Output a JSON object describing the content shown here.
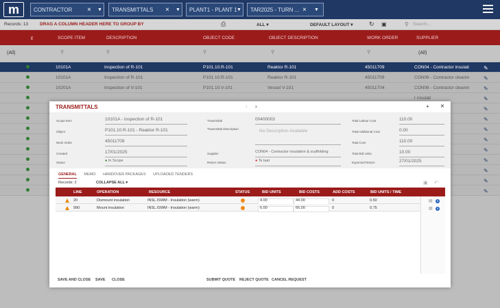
{
  "topbar": {
    "filters": [
      "CONTRACTOR",
      "TRANSMITTALS",
      "PLANT1 - PLANT 1",
      "TAR2025 - TURN ..."
    ]
  },
  "toolbar": {
    "records": "Records: 13",
    "group_hint": "DRAG A COLUMN HEADER HERE TO GROUP BY",
    "scope": "ALL",
    "layout": "DEFAULT LAYOUT",
    "search_placeholder": "Search..."
  },
  "grid": {
    "columns": [
      "SCOPE ITEM",
      "DESCRIPTION",
      "OBJECT CODE",
      "OBJECT DESCRIPTION",
      "WORK ORDER",
      "SUPPLIER"
    ],
    "filter_all": "(All)",
    "rows": [
      {
        "scope": "10101A",
        "desc": "Inspection of R-101",
        "code": "P101.10.R-101",
        "odesc": "Reaktor R-101",
        "wo": "45011709",
        "sup": "CON04 - Contractor insulati"
      },
      {
        "scope": "10101A",
        "desc": "Inspection of R-101",
        "code": "P101.10.R-101",
        "odesc": "Reaktor R-101",
        "wo": "45011709",
        "sup": "CON06 - Contractor cleanin"
      },
      {
        "scope": "10201A",
        "desc": "Inspection of V-101",
        "code": "P101.10.V-101",
        "odesc": "Vessel V-101",
        "wo": "45011704",
        "sup": "CON06 - Contractor cleanin"
      },
      {
        "scope": "",
        "desc": "",
        "code": "",
        "odesc": "",
        "wo": "",
        "sup": "r insulati"
      },
      {
        "scope": "",
        "desc": "",
        "code": "",
        "odesc": "",
        "wo": "",
        "sup": "r insulati"
      },
      {
        "scope": "",
        "desc": "",
        "code": "",
        "odesc": "",
        "wo": "",
        "sup": "r insulati"
      },
      {
        "scope": "",
        "desc": "",
        "code": "",
        "odesc": "",
        "wo": "",
        "sup": "r insulati"
      },
      {
        "scope": "",
        "desc": "",
        "code": "",
        "odesc": "",
        "wo": "",
        "sup": "r insulati"
      },
      {
        "scope": "",
        "desc": "",
        "code": "",
        "odesc": "",
        "wo": "",
        "sup": "r insulati"
      },
      {
        "scope": "",
        "desc": "",
        "code": "",
        "odesc": "",
        "wo": "",
        "sup": "r insulati"
      },
      {
        "scope": "",
        "desc": "",
        "code": "",
        "odesc": "",
        "wo": "",
        "sup": "r cleanin"
      },
      {
        "scope": "",
        "desc": "",
        "code": "",
        "odesc": "",
        "wo": "",
        "sup": "r cleanin"
      },
      {
        "scope": "",
        "desc": "",
        "code": "",
        "odesc": "",
        "wo": "",
        "sup": "r cleanin"
      }
    ]
  },
  "modal": {
    "title": "TRANSMITTALS",
    "fields": {
      "scope_item_label": "Scope Item",
      "scope_item": "10101A - Inspection of R-101",
      "object_label": "Object",
      "object": "P101.10.R-101 - Reaktor R-101",
      "work_order_label": "Work Order",
      "work_order": "45011709",
      "created_label": "Created",
      "created": "17/01/2025",
      "status_label": "Status",
      "status": "In Scope",
      "transmittal_label": "Transmittal",
      "transmittal": "00400003",
      "tdesc_label": "Transmittal Description",
      "tdesc": "No Description Available",
      "supplier_label": "Supplier",
      "supplier": "CON04 - Contractor insulation & scaffolding",
      "return_status_label": "Return Status",
      "return_status": "Te laat",
      "labour_label": "Total Labour Cost",
      "labour": "110.00",
      "additional_label": "Total Additional Cost",
      "additional": "0.00",
      "total_cost_label": "Total Cost",
      "total_cost": "110.00",
      "bid_units_label": "Total Bid Units",
      "bid_units": "10.00",
      "expected_label": "Expected Return",
      "expected": "27/01/2025"
    },
    "tabs": [
      "GENERAL",
      "MEMO",
      "HANDOVER PACKAGES",
      "UPLOADED TENDERS"
    ],
    "records": "Records: 2",
    "collapse": "COLLAPSE ALL",
    "columns": [
      "LINE",
      "OPERATION",
      "RESOURCE",
      "STATUS",
      "BID UNITS",
      "BID COSTS",
      "ADD COSTS",
      "BID UNITS / TIME"
    ],
    "items": [
      {
        "line": "20",
        "op": "Dismount insulation",
        "res": "INSL.ISWM - Insulation (warm)",
        "units": "4.00",
        "costs": "44.00",
        "add": "0",
        "upt": "0.50"
      },
      {
        "line": "990",
        "op": "Mount insulation",
        "res": "INSL.ISWM - Insulation (warm)",
        "units": "6.00",
        "costs": "66.00",
        "add": "0",
        "upt": "0.75"
      }
    ],
    "footer": [
      "SAVE AND CLOSE",
      "SAVE",
      "CLOSE",
      "SUBMIT QUOTE",
      "REJECT QUOTE",
      "CANCEL REQUEST"
    ]
  }
}
